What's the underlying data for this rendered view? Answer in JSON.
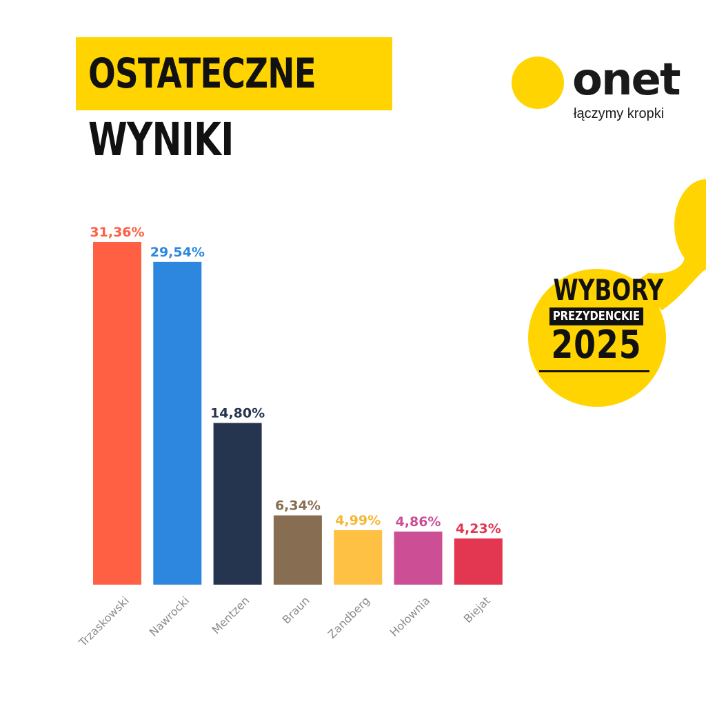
{
  "header": {
    "title_line1": "OSTATECZNE",
    "title_line2": "WYNIKI",
    "accent": "#ffd400"
  },
  "logo": {
    "word": "onet",
    "tagline": "łączymy kropki"
  },
  "badge": {
    "line1": "WYBORY",
    "line2": "PREZYDENCKIE",
    "line3": "2025"
  },
  "chart_data": {
    "type": "bar",
    "title": "",
    "xlabel": "",
    "ylabel": "",
    "ylim": [
      0,
      31.36
    ],
    "grid": false,
    "legend": "none",
    "categories": [
      "Trzaskowski",
      "Nawrocki",
      "Mentzen",
      "Braun",
      "Zandberg",
      "Hołownia",
      "Biejat"
    ],
    "values": [
      31.36,
      29.54,
      14.8,
      6.34,
      4.99,
      4.86,
      4.23
    ],
    "value_labels": [
      "31,36%",
      "29,54%",
      "14,80%",
      "6,34%",
      "4,99%",
      "4,86%",
      "4,23%"
    ],
    "colors": [
      "#ff5f43",
      "#2e87de",
      "#25344f",
      "#876d51",
      "#ffc144",
      "#cc4f96",
      "#e33751"
    ]
  }
}
